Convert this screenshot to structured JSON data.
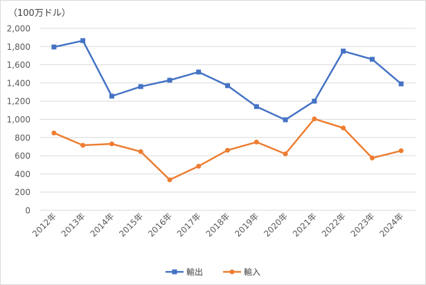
{
  "chart_data": {
    "type": "line",
    "title": "",
    "unit_label": "（100万ドル）",
    "xlabel": "",
    "ylabel": "",
    "categories": [
      "2012年",
      "2013年",
      "2014年",
      "2015年",
      "2016年",
      "2017年",
      "2018年",
      "2019年",
      "2020年",
      "2021年",
      "2022年",
      "2023年",
      "2024年"
    ],
    "y_ticks": [
      "2,000",
      "1,800",
      "1,600",
      "1,400",
      "1,200",
      "1,000",
      "800",
      "600",
      "400",
      "200",
      "0"
    ],
    "ylim": [
      0,
      2000
    ],
    "grid": true,
    "legend_position": "bottom",
    "series": [
      {
        "name": "輸出",
        "color": "#4472c4",
        "marker": "square",
        "values": [
          1795,
          1865,
          1255,
          1360,
          1430,
          1520,
          1370,
          1140,
          995,
          1200,
          1750,
          1660,
          1390
        ]
      },
      {
        "name": "輸入",
        "color": "#ed7d31",
        "marker": "circle",
        "values": [
          850,
          715,
          730,
          645,
          335,
          485,
          660,
          750,
          620,
          1005,
          905,
          575,
          655
        ]
      }
    ]
  }
}
